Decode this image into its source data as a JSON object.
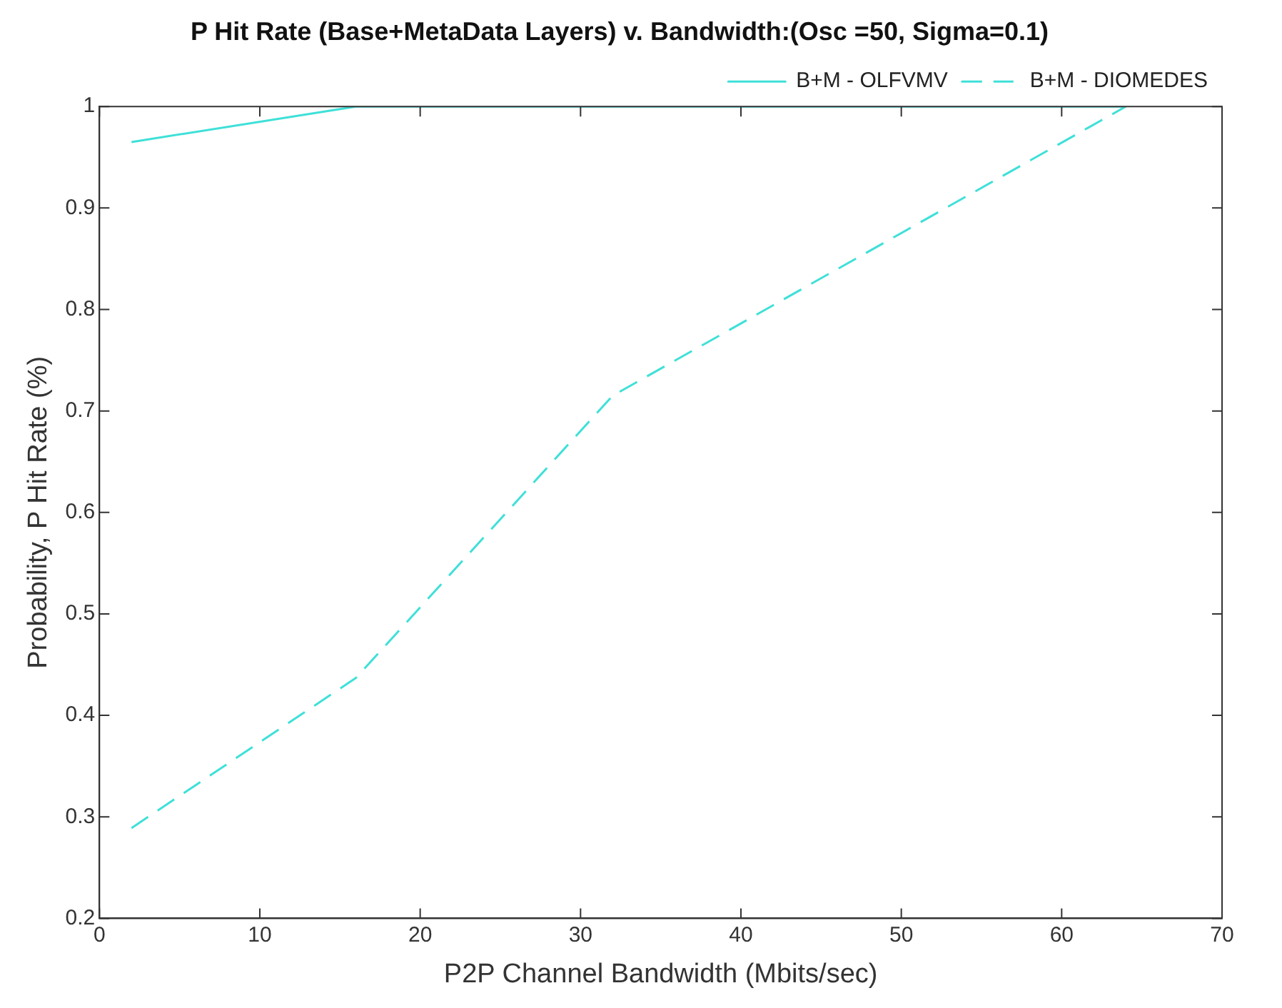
{
  "chart_data": {
    "type": "line",
    "title": "P Hit Rate (Base+MetaData Layers) v. Bandwidth:(Osc =50, Sigma=0.1)",
    "xlabel": "P2P Channel Bandwidth (Mbits/sec)",
    "ylabel": "Probability, P Hit Rate (%)",
    "x": [
      2,
      16,
      32,
      64
    ],
    "series": [
      {
        "name": "B+M - OLFVMV",
        "color": "#3fe0d8",
        "values": [
          0.965,
          1,
          1,
          1
        ],
        "line_style": "solid"
      },
      {
        "name": "B+M - DIOMEDES",
        "color": "#3fe0d8",
        "values": [
          0.289,
          0.437,
          0.715,
          1
        ],
        "line_style": "dashed"
      }
    ],
    "xlim": [
      0,
      70
    ],
    "xticks": [
      0,
      10,
      20,
      30,
      40,
      50,
      60,
      70
    ],
    "ylim": [
      0.2,
      1
    ],
    "yticks": [
      0.2,
      0.3,
      0.4,
      0.5,
      0.6,
      0.7,
      0.8,
      0.9,
      1
    ],
    "grid": false,
    "legend": "top right",
    "marker": "none"
  }
}
